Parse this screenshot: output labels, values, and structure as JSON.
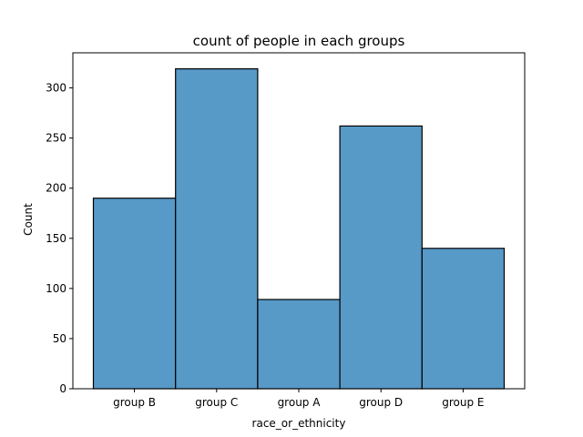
{
  "chart_data": {
    "type": "bar",
    "title": "count of people in each groups",
    "xlabel": "race_or_ethnicity",
    "ylabel": "Count",
    "categories": [
      "group B",
      "group C",
      "group A",
      "group D",
      "group E"
    ],
    "values": [
      190,
      319,
      89,
      262,
      140
    ],
    "ylim": [
      0,
      335
    ],
    "yticks": [
      0,
      50,
      100,
      150,
      200,
      250,
      300
    ],
    "grid": false,
    "legend": "none",
    "colors": {
      "bar_fill": "#5799c7",
      "bar_edge": "#000000",
      "axes": "#000000",
      "background": "#ffffff"
    }
  }
}
